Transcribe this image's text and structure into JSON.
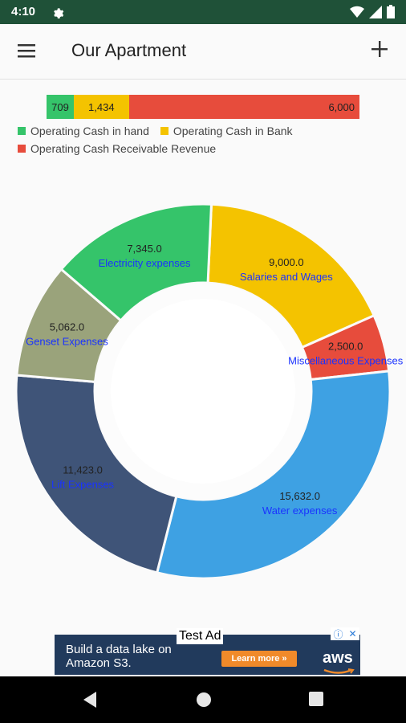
{
  "status_bar": {
    "time": "4:10"
  },
  "app_bar": {
    "title": "Our Apartment"
  },
  "stacked_bar": {
    "segments": [
      {
        "label": "709",
        "value": 709,
        "color": "#35c46a"
      },
      {
        "label": "1,434",
        "value": 1434,
        "color": "#f4c300"
      },
      {
        "label": "6,000",
        "value": 6000,
        "color": "#e74c3c"
      }
    ]
  },
  "legend": {
    "items": [
      {
        "label": "Operating Cash in hand",
        "color": "#35c46a"
      },
      {
        "label": "Operating Cash in Bank",
        "color": "#f4c300"
      },
      {
        "label": "Operating Cash Receivable Revenue",
        "color": "#e74c3c"
      }
    ]
  },
  "chart_data": [
    {
      "type": "bar",
      "categories": [
        "Operating Cash in hand",
        "Operating Cash in Bank",
        "Operating Cash Receivable Revenue"
      ],
      "values": [
        709,
        1434,
        6000
      ],
      "stacked": true
    },
    {
      "type": "pie",
      "donut": true,
      "slices": [
        {
          "label": "Salaries and Wages",
          "value": 9000.0,
          "value_label": "9,000.0",
          "color": "#f4c300"
        },
        {
          "label": "Miscellaneous Expenses",
          "value": 2500.0,
          "value_label": "2,500.0",
          "color": "#e74c3c"
        },
        {
          "label": "Water expenses",
          "value": 15632.0,
          "value_label": "15,632.0",
          "color": "#3ea1e3"
        },
        {
          "label": "Lift Expenses",
          "value": 11423.0,
          "value_label": "11,423.0",
          "color": "#3f5478"
        },
        {
          "label": "Genset Expenses",
          "value": 5062.0,
          "value_label": "5,062.0",
          "color": "#9aa37b"
        },
        {
          "label": "Electricity expenses",
          "value": 7345.0,
          "value_label": "7,345.0",
          "color": "#35c46a"
        }
      ]
    }
  ],
  "ad": {
    "tag": "Test Ad",
    "headline_line1": "Build a data lake on",
    "headline_line2": "Amazon S3.",
    "cta": "Learn more »",
    "brand": "aws"
  },
  "colors": {
    "status_bar": "#1f5138",
    "label_blue": "#1a33ff"
  }
}
